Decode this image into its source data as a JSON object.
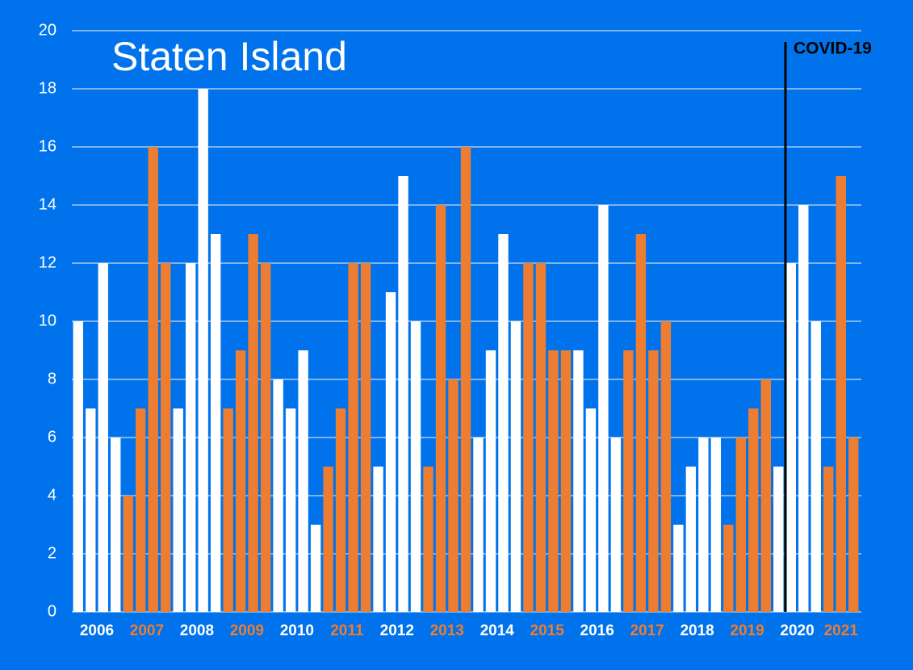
{
  "chart_data": {
    "type": "bar",
    "title": "Staten Island",
    "annotation": "COVID-19",
    "ylim": [
      0,
      20
    ],
    "yticks": [
      0,
      2,
      4,
      6,
      8,
      10,
      12,
      14,
      16,
      18,
      20
    ],
    "grid": true,
    "groups": [
      {
        "label": "2006",
        "color": "#ffffff",
        "values": [
          10,
          7,
          12,
          6
        ]
      },
      {
        "label": "2007",
        "color": "#ed7d31",
        "values": [
          4,
          7,
          16,
          12
        ]
      },
      {
        "label": "2008",
        "color": "#ffffff",
        "values": [
          7,
          12,
          18,
          13
        ]
      },
      {
        "label": "2009",
        "color": "#ed7d31",
        "values": [
          7,
          9,
          13,
          12
        ]
      },
      {
        "label": "2010",
        "color": "#ffffff",
        "values": [
          8,
          7,
          9,
          3
        ]
      },
      {
        "label": "2011",
        "color": "#ed7d31",
        "values": [
          5,
          7,
          12,
          12
        ]
      },
      {
        "label": "2012",
        "color": "#ffffff",
        "values": [
          5,
          11,
          15,
          10
        ]
      },
      {
        "label": "2013",
        "color": "#ed7d31",
        "values": [
          5,
          14,
          8,
          16
        ]
      },
      {
        "label": "2014",
        "color": "#ffffff",
        "values": [
          6,
          9,
          13,
          10
        ]
      },
      {
        "label": "2015",
        "color": "#ed7d31",
        "values": [
          12,
          12,
          9,
          9
        ]
      },
      {
        "label": "2016",
        "color": "#ffffff",
        "values": [
          9,
          7,
          14,
          6
        ]
      },
      {
        "label": "2017",
        "color": "#ed7d31",
        "values": [
          9,
          13,
          9,
          10
        ]
      },
      {
        "label": "2018",
        "color": "#ffffff",
        "values": [
          3,
          5,
          6,
          6
        ]
      },
      {
        "label": "2019",
        "color": "#ed7d31",
        "values": [
          3,
          6,
          7,
          8
        ]
      },
      {
        "label": "2020",
        "color": "#ffffff",
        "values": [
          5,
          12,
          14,
          10
        ]
      },
      {
        "label": "2021",
        "color": "#ed7d31",
        "values": [
          5,
          15,
          6
        ]
      }
    ]
  }
}
